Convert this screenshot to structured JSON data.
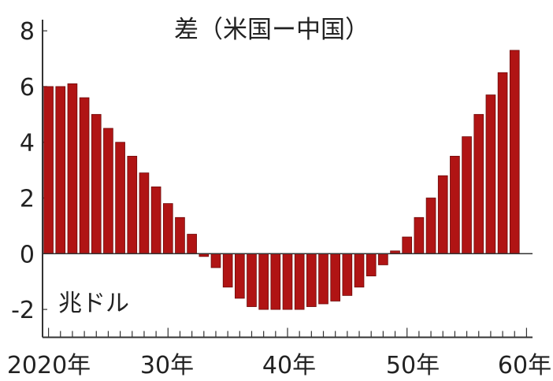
{
  "chart_data": {
    "type": "bar",
    "title": "差（米国ー中国）",
    "unit_label": "兆ドル",
    "bar_color": "#b01414",
    "bar_edge_color": "#6e0a0a",
    "axis_color": "#333333",
    "grid": false,
    "legend": "none",
    "x_start_year": 2020,
    "x_end_year": 2060,
    "x_tick_labels": [
      "2020年",
      "30年",
      "40年",
      "50年",
      "60年"
    ],
    "y_tick_labels": [
      "8",
      "6",
      "4",
      "2",
      "0",
      "-2"
    ],
    "y_ticks": [
      8,
      6,
      4,
      2,
      0,
      -2
    ],
    "ylim": [
      -3.1,
      8.4
    ],
    "categories": [
      2020,
      2021,
      2022,
      2023,
      2024,
      2025,
      2026,
      2027,
      2028,
      2029,
      2030,
      2031,
      2032,
      2033,
      2034,
      2035,
      2036,
      2037,
      2038,
      2039,
      2040,
      2041,
      2042,
      2043,
      2044,
      2045,
      2046,
      2047,
      2048,
      2049,
      2050,
      2051,
      2052,
      2053,
      2054,
      2055,
      2056,
      2057,
      2058,
      2059,
      2060
    ],
    "values": [
      6.0,
      6.0,
      6.1,
      5.6,
      5.0,
      4.5,
      4.0,
      3.5,
      2.9,
      2.4,
      1.8,
      1.3,
      0.7,
      -0.1,
      -0.5,
      -1.2,
      -1.6,
      -1.9,
      -2.0,
      -2.0,
      -2.0,
      -2.0,
      -1.9,
      -1.8,
      -1.7,
      -1.5,
      -1.2,
      -0.8,
      -0.4,
      0.1,
      0.6,
      1.3,
      2.0,
      2.8,
      3.5,
      4.2,
      5.0,
      5.7,
      6.5,
      7.3,
      null
    ]
  }
}
